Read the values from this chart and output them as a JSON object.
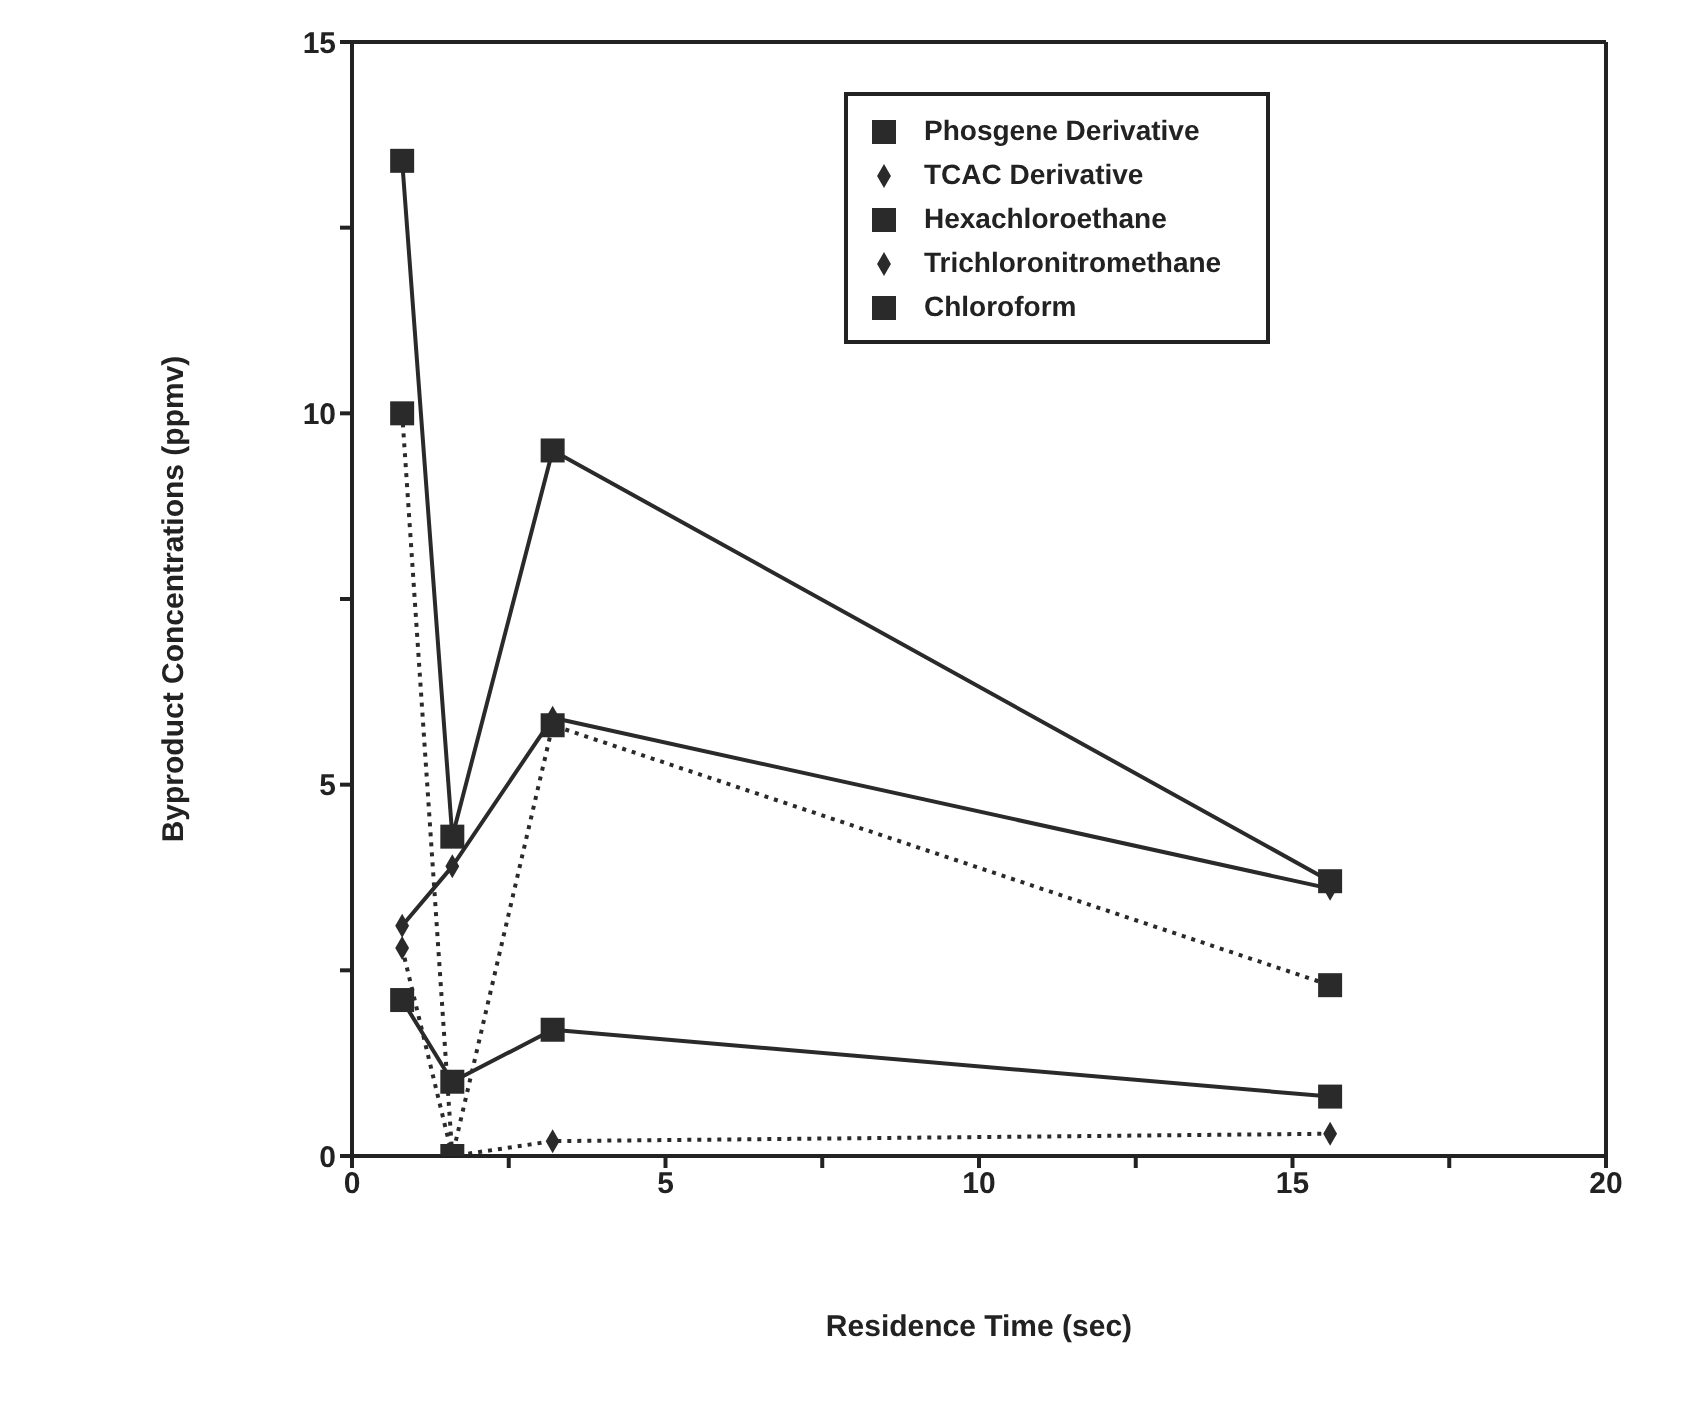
{
  "chart_data": {
    "type": "line",
    "xlabel": "Residence  Time  (sec)",
    "ylabel": "Byproduct  Concentrations  (ppmv)",
    "x": [
      0.8,
      1.6,
      3.2,
      15.6
    ],
    "series": [
      {
        "name": "Phosgene Derivative",
        "color": "#2a2a2a",
        "marker": "square",
        "line_style": "solid",
        "values": [
          13.4,
          4.3,
          9.5,
          3.7
        ]
      },
      {
        "name": "TCAC Derivative",
        "color": "#2a2a2a",
        "marker": "diamond",
        "line_style": "solid",
        "values": [
          3.1,
          3.9,
          5.9,
          3.6
        ]
      },
      {
        "name": "Hexachloroethane",
        "color": "#2a2a2a",
        "marker": "square",
        "line_style": "solid",
        "values": [
          2.1,
          1.0,
          1.7,
          0.8
        ]
      },
      {
        "name": "Trichloronitromethane",
        "color": "#2a2a2a",
        "marker": "diamond",
        "line_style": "dotted",
        "values": [
          2.8,
          0,
          0.2,
          0.3
        ]
      },
      {
        "name": "Chloroform",
        "color": "#2a2a2a",
        "marker": "square",
        "line_style": "dotted",
        "values": [
          10,
          0,
          5.8,
          2.3
        ]
      }
    ],
    "xlim": [
      0,
      20
    ],
    "xticks": [
      0,
      {
        "value": 2.5,
        "label": null
      },
      5,
      {
        "value": 7.5,
        "label": null
      },
      10,
      {
        "value": 12.5,
        "label": null
      },
      15,
      {
        "value": 17.5,
        "label": null
      },
      20
    ],
    "ylim": [
      0,
      15
    ],
    "yticks": [
      0,
      {
        "value": 2.5,
        "label": null
      },
      5,
      {
        "value": 7.5,
        "label": null
      },
      10,
      {
        "value": 12.5,
        "label": null
      },
      15
    ],
    "grid": false,
    "legend": "top right"
  }
}
